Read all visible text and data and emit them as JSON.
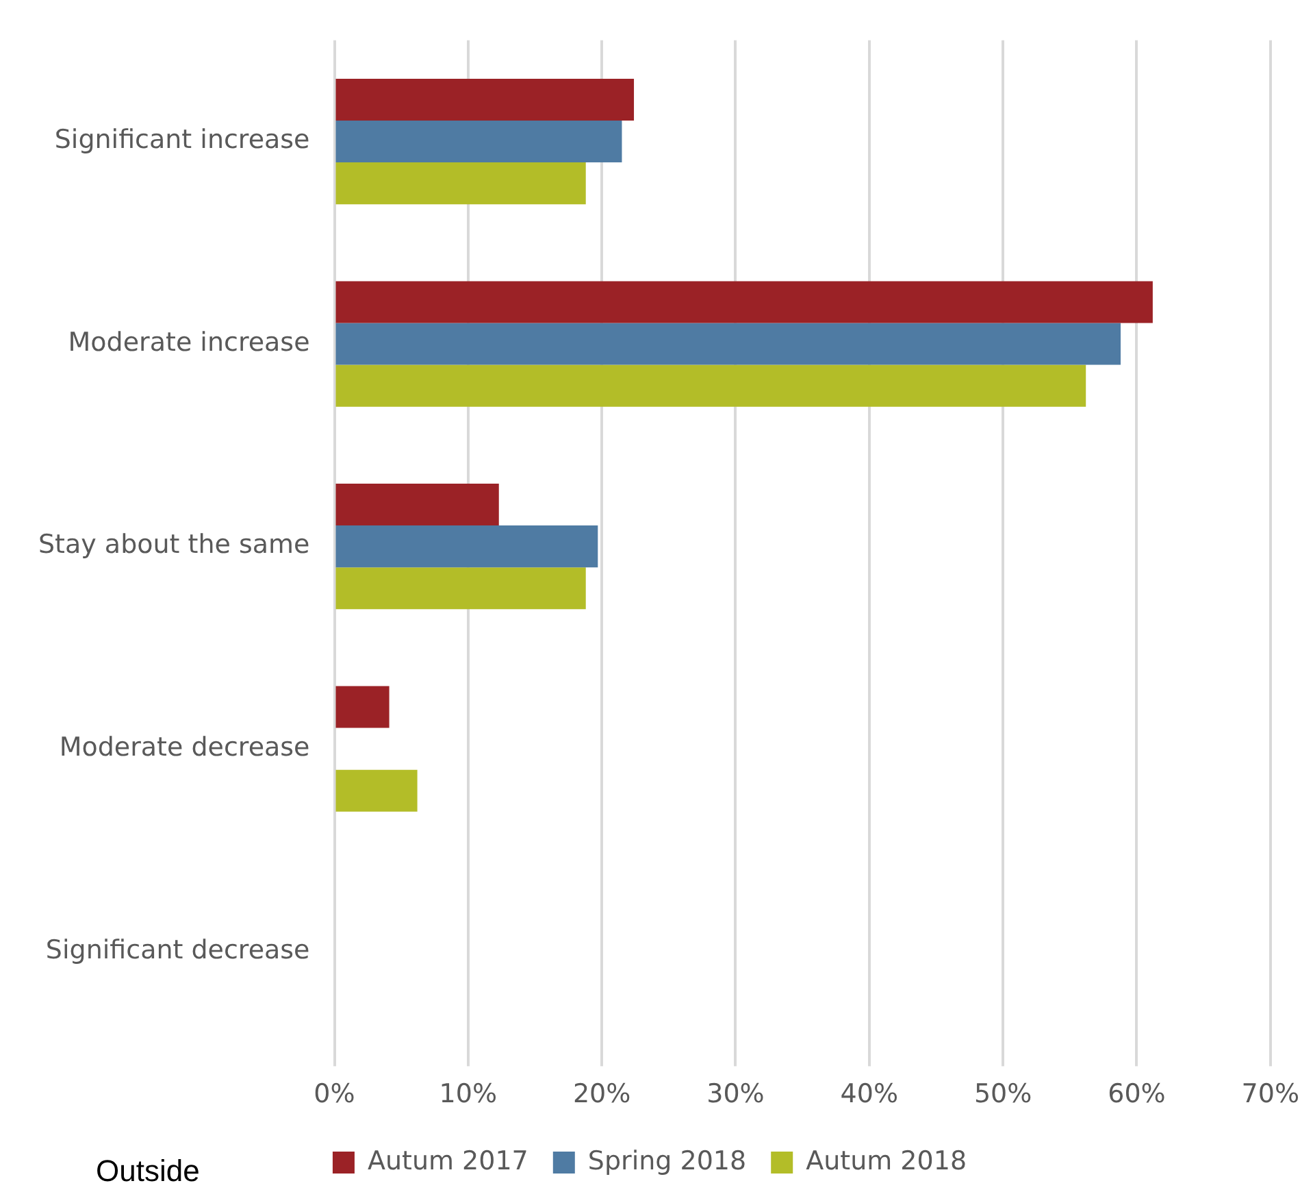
{
  "chart_data": {
    "type": "bar",
    "orientation": "horizontal",
    "categories": [
      "Significant increase",
      "Moderate increase",
      "Stay about the same",
      "Moderate decrease",
      "Significant decrease"
    ],
    "series": [
      {
        "name": "Autum 2017",
        "color": "#9b2226",
        "values": [
          22.4,
          61.2,
          12.3,
          4.1,
          0
        ]
      },
      {
        "name": "Spring 2018",
        "color": "#4f7ba3",
        "values": [
          21.5,
          58.8,
          19.7,
          0,
          0
        ]
      },
      {
        "name": "Autum 2018",
        "color": "#b3bd28",
        "values": [
          18.8,
          56.2,
          18.8,
          6.2,
          0
        ]
      }
    ],
    "xlim": [
      0,
      70
    ],
    "xticks": [
      {
        "value": 0,
        "label": "0%"
      },
      {
        "value": 10,
        "label": "10%"
      },
      {
        "value": 20,
        "label": "20%"
      },
      {
        "value": 30,
        "label": "30%"
      },
      {
        "value": 40,
        "label": "40%"
      },
      {
        "value": 50,
        "label": "50%"
      },
      {
        "value": 60,
        "label": "60%"
      },
      {
        "value": 70,
        "label": "70%"
      }
    ],
    "grid": "x",
    "legend": "bottom",
    "annotations": [
      "Outside"
    ]
  }
}
